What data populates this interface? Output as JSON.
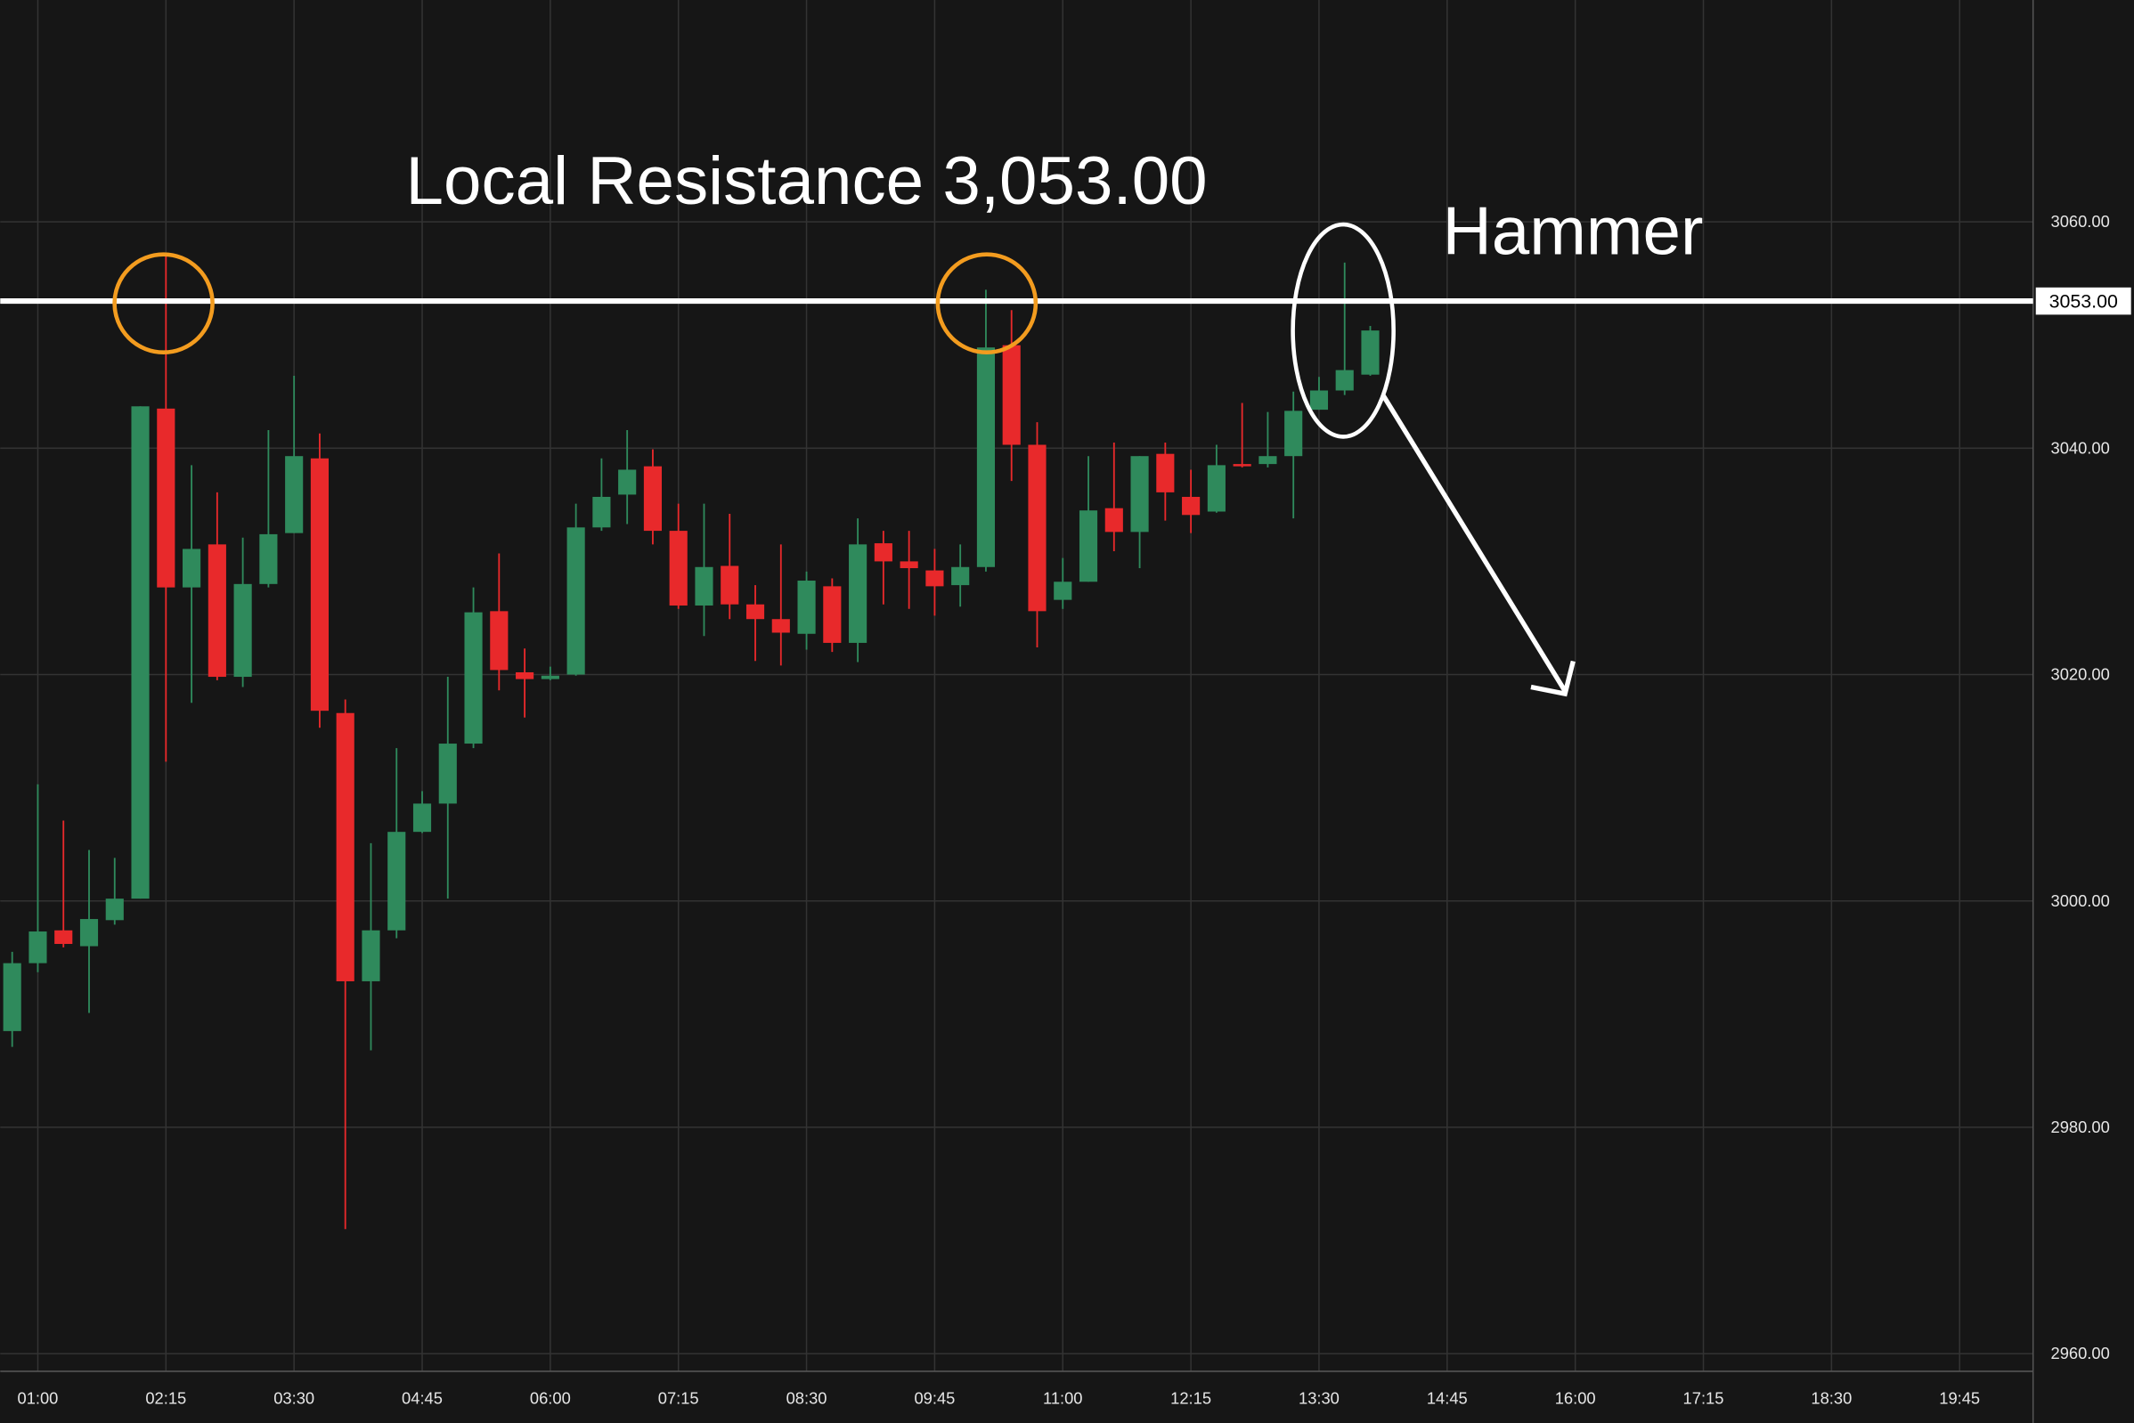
{
  "chart_data": {
    "type": "candlestick",
    "annotations": [
      "Local Resistance 3,053.00",
      "Hammer"
    ],
    "hline": {
      "value": 3053,
      "label": "3053.00"
    },
    "up_color": "#2f8a5c",
    "down_color": "#e8292b",
    "grid": true,
    "x": [
      "00:45",
      "01:00",
      "01:15",
      "01:30",
      "01:45",
      "02:00",
      "02:15",
      "02:30",
      "02:45",
      "03:00",
      "03:15",
      "03:30",
      "03:45",
      "04:00",
      "04:15",
      "04:30",
      "04:45",
      "05:00",
      "05:15",
      "05:30",
      "05:45",
      "06:00",
      "06:15",
      "06:30",
      "06:45",
      "07:00",
      "07:15",
      "07:30",
      "07:45",
      "08:00",
      "08:15",
      "08:30",
      "08:45",
      "09:00",
      "09:15",
      "09:30",
      "09:45",
      "10:00",
      "10:15",
      "10:30",
      "10:45",
      "11:00",
      "11:15",
      "11:30",
      "11:45",
      "12:00",
      "12:15",
      "12:30",
      "12:45",
      "13:00",
      "13:15",
      "13:30",
      "13:45",
      "14:00"
    ],
    "open": [
      2988.5,
      2994.5,
      2997.4,
      2996.0,
      2998.3,
      3000.2,
      3043.5,
      3027.7,
      3031.5,
      3019.8,
      3028.0,
      3032.5,
      3039.1,
      3016.6,
      2992.9,
      2997.4,
      3006.1,
      3008.6,
      3013.9,
      3025.6,
      3020.2,
      3019.6,
      3020.0,
      3033.0,
      3035.9,
      3038.4,
      3032.7,
      3026.1,
      3029.6,
      3026.2,
      3024.9,
      3023.6,
      3027.8,
      3022.8,
      3031.6,
      3030.0,
      3029.2,
      3027.9,
      3029.5,
      3049.1,
      3040.3,
      3026.6,
      3028.2,
      3034.7,
      3032.6,
      3039.5,
      3035.7,
      3034.4,
      3038.6,
      3038.6,
      3039.3,
      3043.4,
      3045.1,
      3046.5
    ],
    "high": [
      2995.5,
      3010.3,
      3007.1,
      3004.5,
      3003.8,
      3043.7,
      3057.1,
      3038.5,
      3036.1,
      3032.1,
      3041.6,
      3046.4,
      3041.3,
      3017.8,
      3005.1,
      3013.5,
      3009.7,
      3019.8,
      3027.7,
      3030.7,
      3022.3,
      3020.7,
      3035.1,
      3039.1,
      3041.6,
      3039.9,
      3035.1,
      3035.1,
      3034.2,
      3027.9,
      3031.5,
      3029.1,
      3028.5,
      3033.8,
      3032.7,
      3032.7,
      3031.1,
      3031.5,
      3054.0,
      3052.2,
      3042.3,
      3030.3,
      3039.3,
      3040.5,
      3039.3,
      3040.5,
      3038.1,
      3040.3,
      3044.0,
      3043.2,
      3045.0,
      3046.3,
      3056.4,
      3050.8
    ],
    "low": [
      2987.1,
      2993.7,
      2995.9,
      2990.1,
      2997.9,
      3000.2,
      3012.3,
      3017.5,
      3019.5,
      3018.9,
      3027.7,
      3032.5,
      3015.3,
      2971.0,
      2986.8,
      2996.7,
      3006.0,
      3000.2,
      3013.5,
      3018.6,
      3016.2,
      3019.5,
      3019.9,
      3032.7,
      3033.3,
      3031.5,
      3025.8,
      3023.4,
      3024.9,
      3021.2,
      3020.8,
      3022.2,
      3022.0,
      3021.1,
      3026.2,
      3025.8,
      3025.2,
      3026.0,
      3029.1,
      3037.1,
      3022.4,
      3025.8,
      3028.2,
      3030.9,
      3029.4,
      3033.6,
      3032.5,
      3034.3,
      3038.3,
      3038.3,
      3033.8,
      3043.4,
      3044.7,
      3046.4
    ],
    "close": [
      2994.5,
      2997.3,
      2996.2,
      2998.4,
      3000.2,
      3043.7,
      3027.7,
      3031.1,
      3019.8,
      3028.0,
      3032.4,
      3039.3,
      3016.8,
      2992.9,
      2997.4,
      3006.1,
      3008.6,
      3013.9,
      3025.5,
      3020.4,
      3019.6,
      3019.9,
      3033.0,
      3035.7,
      3038.1,
      3032.7,
      3026.1,
      3029.5,
      3026.2,
      3024.9,
      3023.7,
      3028.3,
      3022.8,
      3031.5,
      3030.0,
      3029.4,
      3027.8,
      3029.5,
      3048.9,
      3040.3,
      3025.6,
      3028.2,
      3034.5,
      3032.6,
      3039.3,
      3036.1,
      3034.1,
      3038.5,
      3038.4,
      3039.3,
      3043.3,
      3045.1,
      3046.9,
      3050.4
    ],
    "xlim": [
      "00:38",
      "20:28"
    ],
    "xticks": [
      "01:00",
      "02:15",
      "03:30",
      "04:45",
      "06:00",
      "07:15",
      "08:30",
      "09:45",
      "11:00",
      "12:15",
      "13:30",
      "14:45",
      "16:00",
      "17:15",
      "18:30",
      "19:45"
    ],
    "ylim": [
      2958.8,
      3079.6
    ],
    "yticks": [
      {
        "value": 2960,
        "label": "2960.00"
      },
      {
        "value": 2980,
        "label": "2980.00"
      },
      {
        "value": 3000,
        "label": "3000.00"
      },
      {
        "value": 3020,
        "label": "3020.00"
      },
      {
        "value": 3040,
        "label": "3040.00"
      },
      {
        "value": 3060,
        "label": "3060.00"
      }
    ]
  }
}
